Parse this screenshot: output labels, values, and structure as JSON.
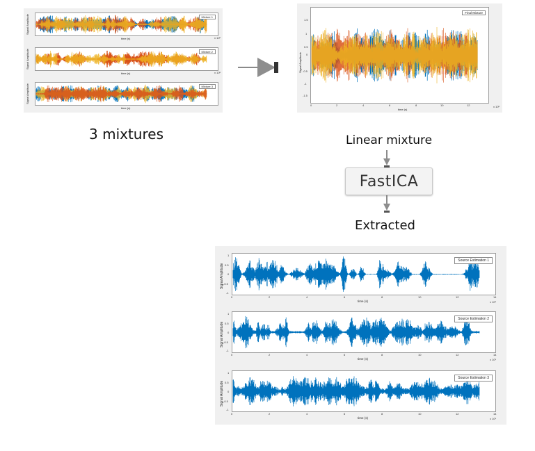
{
  "labels": {
    "mixtures_caption": "3 mixtures",
    "linear_mixture": "Linear mixture",
    "fastica": "FastICA",
    "extracted": "Extracted"
  },
  "colors": {
    "blue": "#0072bd",
    "orange": "#d95319",
    "yellow": "#edb120",
    "panel_bg": "#f0f0f0"
  },
  "common": {
    "time_label": "time (s)",
    "amp_label": "Signal Amplitude",
    "x_ticks": [
      "0",
      "2",
      "4",
      "6",
      "8",
      "10",
      "12",
      "14"
    ],
    "x_exponent": "x 10⁵",
    "y_ticks_3": [
      "1",
      "0.5",
      "0",
      "-0.5",
      "-1"
    ]
  },
  "mixtures": [
    {
      "legend": "Mixture 1"
    },
    {
      "legend": "Mixture 2"
    },
    {
      "legend": "Mixture 3"
    }
  ],
  "final": {
    "legend": "Final Mixture",
    "y_ticks": [
      "1.5",
      "1",
      "0.5",
      "0",
      "-0.5",
      "-1",
      "-1.5"
    ],
    "x_ticks": [
      "0",
      "2",
      "4",
      "6",
      "8",
      "10",
      "12"
    ]
  },
  "sources": [
    {
      "legend": "Source Estimation 1"
    },
    {
      "legend": "Source Estimation 2"
    },
    {
      "legend": "Source Estimation 3"
    }
  ]
}
